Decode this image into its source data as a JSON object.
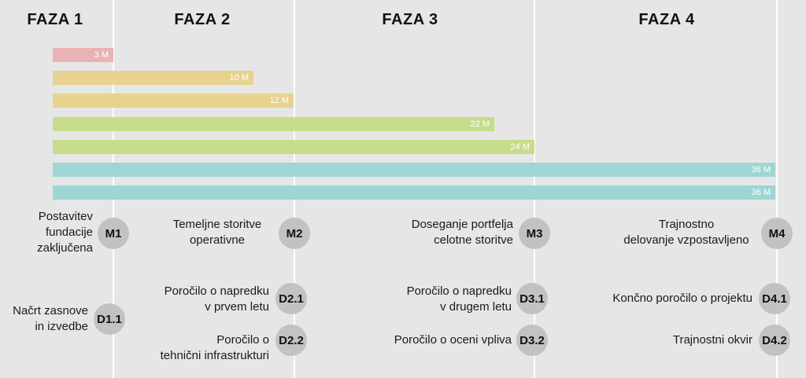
{
  "phases": [
    "FAZA 1",
    "FAZA 2",
    "FAZA 3",
    "FAZA 4"
  ],
  "colors": {
    "background": "#e6e6e6",
    "divider": "#ffffff",
    "badge": "#c2c2c2",
    "bar_red": "#e9b3b3",
    "bar_yellow": "#e8d28f",
    "bar_green": "#c7dc8c",
    "bar_teal": "#9fd6d4"
  },
  "bars": [
    {
      "label": "3 M",
      "months": 3,
      "color": "bar_red"
    },
    {
      "label": "10 M",
      "months": 10,
      "color": "bar_yellow"
    },
    {
      "label": "12 M",
      "months": 12,
      "color": "bar_yellow"
    },
    {
      "label": "22 M",
      "months": 22,
      "color": "bar_green"
    },
    {
      "label": "24 M",
      "months": 24,
      "color": "bar_green"
    },
    {
      "label": "36 M",
      "months": 36,
      "color": "bar_teal"
    },
    {
      "label": "36 M",
      "months": 36,
      "color": "bar_teal"
    }
  ],
  "milestones": [
    {
      "code": "M1",
      "lines": [
        "Postavitev",
        "fundacije",
        "zaključena"
      ]
    },
    {
      "code": "M2",
      "lines": [
        "Temeljne storitve",
        "operativne"
      ]
    },
    {
      "code": "M3",
      "lines": [
        "Doseganje portfelja",
        "celotne storitve"
      ]
    },
    {
      "code": "M4",
      "lines": [
        "Trajnostno",
        "delovanje vzpostavljeno"
      ]
    }
  ],
  "deliverables": [
    {
      "code": "D1.1",
      "lines": [
        "Načrt zasnove",
        "in izvedbe"
      ]
    },
    {
      "code": "D2.1",
      "lines": [
        "Poročilo o napredku",
        "v prvem letu"
      ]
    },
    {
      "code": "D2.2",
      "lines": [
        "Poročilo o",
        "tehnični infrastrukturi"
      ]
    },
    {
      "code": "D3.1",
      "lines": [
        "Poročilo o napredku",
        "v drugem letu"
      ]
    },
    {
      "code": "D3.2",
      "lines": [
        "Poročilo o oceni vpliva"
      ]
    },
    {
      "code": "D4.1",
      "lines": [
        "Končno poročilo o projektu"
      ]
    },
    {
      "code": "D4.2",
      "lines": [
        "Trajnostni okvir"
      ]
    }
  ]
}
